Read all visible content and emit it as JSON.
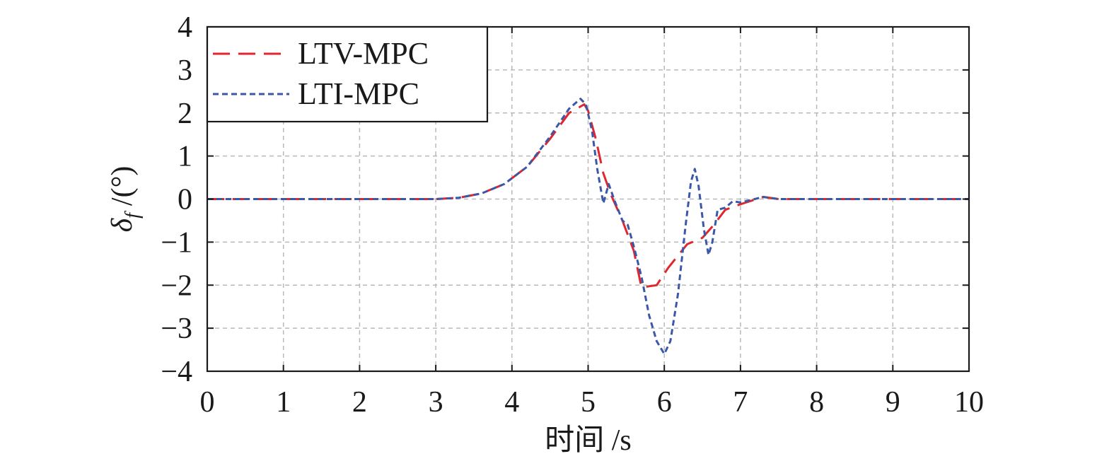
{
  "chart_data": {
    "type": "line",
    "title": "",
    "xlabel": "时间 /s",
    "ylabel": "δ_f /(°)",
    "ylabel_symbol": "δ",
    "ylabel_subscript": "f",
    "ylabel_unit": "/(°)",
    "xlim": [
      0,
      10
    ],
    "ylim": [
      -4,
      4
    ],
    "xticks": [
      0,
      1,
      2,
      3,
      4,
      5,
      6,
      7,
      8,
      9,
      10
    ],
    "yticks": [
      -4,
      -3,
      -2,
      -1,
      0,
      1,
      2,
      3,
      4
    ],
    "grid": true,
    "legend_position": "top-left",
    "series": [
      {
        "name": "LTV-MPC",
        "color": "#e0262f",
        "style": "long-dash",
        "points": [
          [
            0,
            0
          ],
          [
            1,
            0
          ],
          [
            2,
            0
          ],
          [
            3,
            0
          ],
          [
            3.3,
            0.03
          ],
          [
            3.6,
            0.13
          ],
          [
            3.9,
            0.35
          ],
          [
            4.2,
            0.75
          ],
          [
            4.5,
            1.4
          ],
          [
            4.75,
            2.0
          ],
          [
            4.95,
            2.2
          ],
          [
            5.0,
            2.05
          ],
          [
            5.1,
            1.4
          ],
          [
            5.2,
            0.6
          ],
          [
            5.3,
            0.1
          ],
          [
            5.45,
            -0.5
          ],
          [
            5.6,
            -1.2
          ],
          [
            5.7,
            -2.05
          ],
          [
            5.9,
            -2.0
          ],
          [
            6.05,
            -1.6
          ],
          [
            6.3,
            -1.05
          ],
          [
            6.5,
            -0.9
          ],
          [
            6.65,
            -0.6
          ],
          [
            6.8,
            -0.25
          ],
          [
            7.0,
            -0.12
          ],
          [
            7.3,
            0.05
          ],
          [
            7.5,
            0
          ],
          [
            8,
            0
          ],
          [
            9,
            0
          ],
          [
            10,
            0
          ]
        ]
      },
      {
        "name": "LTI-MPC",
        "color": "#3b58a8",
        "style": "short-dash",
        "points": [
          [
            0,
            0
          ],
          [
            1,
            0
          ],
          [
            2,
            0
          ],
          [
            3,
            0
          ],
          [
            3.3,
            0.03
          ],
          [
            3.6,
            0.13
          ],
          [
            3.9,
            0.35
          ],
          [
            4.2,
            0.75
          ],
          [
            4.5,
            1.45
          ],
          [
            4.75,
            2.1
          ],
          [
            4.9,
            2.33
          ],
          [
            4.97,
            2.2
          ],
          [
            5.05,
            1.6
          ],
          [
            5.12,
            0.7
          ],
          [
            5.2,
            -0.1
          ],
          [
            5.27,
            0.35
          ],
          [
            5.35,
            -0.05
          ],
          [
            5.45,
            -0.5
          ],
          [
            5.52,
            -0.6
          ],
          [
            5.6,
            -1.1
          ],
          [
            5.7,
            -1.8
          ],
          [
            5.8,
            -2.7
          ],
          [
            5.9,
            -3.3
          ],
          [
            6.0,
            -3.6
          ],
          [
            6.08,
            -3.3
          ],
          [
            6.18,
            -2.2
          ],
          [
            6.28,
            -0.6
          ],
          [
            6.35,
            0.4
          ],
          [
            6.4,
            0.7
          ],
          [
            6.45,
            0.3
          ],
          [
            6.52,
            -0.7
          ],
          [
            6.58,
            -1.3
          ],
          [
            6.63,
            -1.0
          ],
          [
            6.7,
            -0.25
          ],
          [
            6.8,
            -0.2
          ],
          [
            6.9,
            -0.05
          ],
          [
            7.0,
            -0.08
          ],
          [
            7.3,
            0.05
          ],
          [
            7.5,
            0
          ],
          [
            8,
            0
          ],
          [
            9,
            0
          ],
          [
            10,
            0
          ]
        ]
      }
    ]
  }
}
